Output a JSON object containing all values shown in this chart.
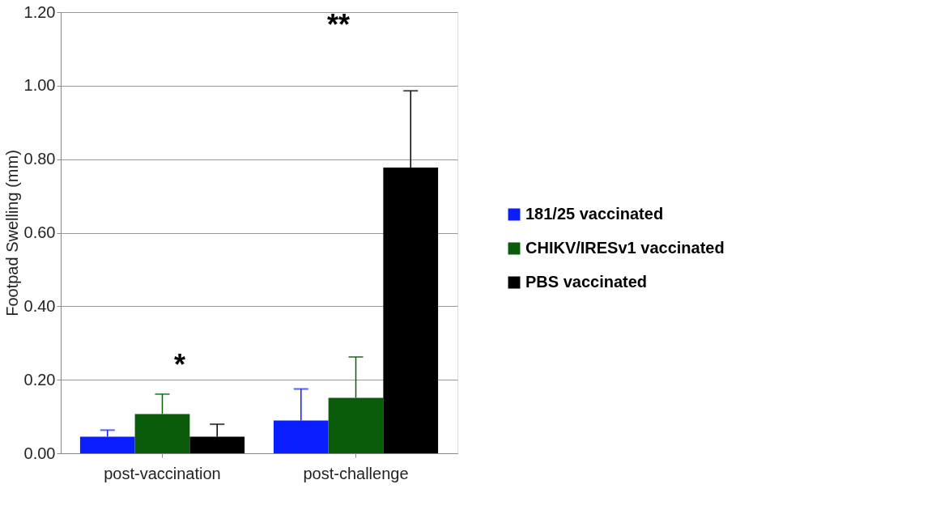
{
  "chart_data": {
    "type": "bar",
    "ylabel": "Footpad Swelling (mm)",
    "categories": [
      "post-vaccination",
      "post-challenge"
    ],
    "series": [
      {
        "name": "181/25 vaccinated",
        "color": "#0a1eff",
        "values": [
          0.045,
          0.089
        ],
        "errors": [
          [
            0.045,
            0.063
          ],
          [
            0.089,
            0.175
          ]
        ]
      },
      {
        "name": "CHIKV/IRESv1 vaccinated",
        "color": "#0a5c0a",
        "values": [
          0.107,
          0.151
        ],
        "errors": [
          [
            0.107,
            0.161
          ],
          [
            0.151,
            0.262
          ]
        ]
      },
      {
        "name": "PBS vaccinated",
        "color": "#000000",
        "values": [
          0.045,
          0.777
        ],
        "errors": [
          [
            0.045,
            0.079
          ],
          [
            0.777,
            0.986
          ]
        ]
      }
    ],
    "ylim": [
      0,
      1.2
    ],
    "yticks": [
      {
        "value": 0,
        "label": "0.00"
      },
      {
        "value": 0.2,
        "label": "0.20"
      },
      {
        "value": 0.4,
        "label": "0.40"
      },
      {
        "value": 0.6,
        "label": "0.60"
      },
      {
        "value": 0.8,
        "label": "0.80"
      },
      {
        "value": 1.0,
        "label": "1.00"
      },
      {
        "value": 1.2,
        "label": "1.20"
      }
    ],
    "grid": "y",
    "legend": "right",
    "annotations": [
      "*",
      "**"
    ]
  }
}
